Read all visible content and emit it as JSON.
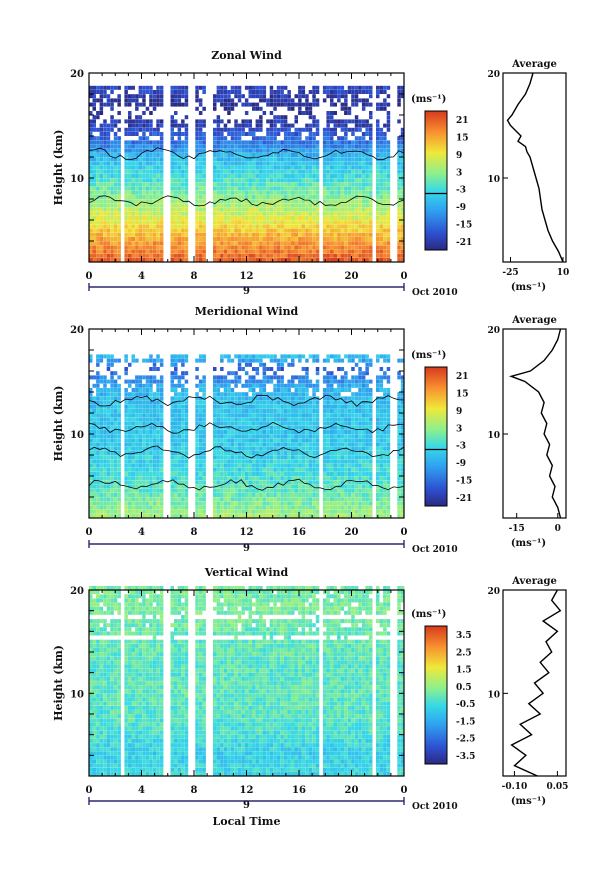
{
  "figure": {
    "bg": "#ffffff"
  },
  "chart_data": [
    {
      "type": "heatmap",
      "title": "Zonal Wind",
      "xlabel": "",
      "ylabel": "Height (km)",
      "x_ticks": [
        "0",
        "4",
        "8",
        "12",
        "16",
        "20",
        "0"
      ],
      "x_day_label": "9",
      "date_label": "Oct 2010",
      "y_ticks": [
        "20",
        "10"
      ],
      "ylim": [
        2,
        20
      ],
      "xlim": [
        0,
        24
      ],
      "colorbar": {
        "unit": "(ms⁻¹)",
        "ticks": [
          "21",
          "15",
          "9",
          "3",
          "-3",
          "-9",
          "-15",
          "-21"
        ],
        "range": [
          -24,
          24
        ]
      },
      "data_gaps_hours": [
        2.4,
        5.8,
        7.7,
        9.0,
        17.5,
        21.6,
        23.0
      ],
      "profile_by_height": {
        "heights_km": [
          2,
          4,
          6,
          8,
          10,
          12,
          13,
          14,
          15,
          16,
          17,
          18
        ],
        "values": [
          21,
          15,
          8,
          2,
          -3,
          -8,
          -14,
          -17,
          -21,
          -22,
          -22,
          -20
        ]
      },
      "average": {
        "title": "Average",
        "xlabel": "(ms⁻¹)",
        "x_ticks": [
          "-25",
          "10"
        ],
        "xlim": [
          -30,
          12
        ],
        "y_ticks": [
          "20",
          "10"
        ],
        "heights_km": [
          2,
          3,
          4,
          5,
          6,
          7,
          8,
          9,
          10,
          11,
          12,
          12.5,
          13,
          13.5,
          14,
          15,
          15.5,
          16,
          17,
          18,
          19,
          20
        ],
        "values": [
          10,
          7,
          3,
          0,
          -2,
          -4,
          -5,
          -6,
          -8,
          -10,
          -12,
          -14,
          -15,
          -20,
          -18,
          -25,
          -27,
          -24,
          -20,
          -15,
          -12,
          -10
        ]
      }
    },
    {
      "type": "heatmap",
      "title": "Meridional Wind",
      "xlabel": "",
      "ylabel": "Height (km)",
      "x_ticks": [
        "0",
        "4",
        "8",
        "12",
        "16",
        "20",
        "0"
      ],
      "x_day_label": "9",
      "date_label": "Oct 2010",
      "y_ticks": [
        "20",
        "10"
      ],
      "ylim": [
        2,
        20
      ],
      "xlim": [
        0,
        24
      ],
      "colorbar": {
        "unit": "(ms⁻¹)",
        "ticks": [
          "21",
          "15",
          "9",
          "3",
          "-3",
          "-9",
          "-15",
          "-21"
        ],
        "range": [
          -24,
          24
        ]
      },
      "data_gaps_hours": [
        2.4,
        5.8,
        7.7,
        9.0,
        17.5,
        21.6,
        23.0
      ],
      "profile_by_height": {
        "heights_km": [
          2,
          4,
          6,
          8,
          10,
          12,
          14,
          15,
          16,
          17,
          18
        ],
        "values": [
          4,
          0,
          -3,
          -5,
          -6,
          -6,
          -8,
          -12,
          -17,
          -8,
          -2
        ]
      },
      "average": {
        "title": "Average",
        "xlabel": "(ms⁻¹)",
        "x_ticks": [
          "-15",
          "0"
        ],
        "xlim": [
          -20,
          3
        ],
        "y_ticks": [
          "20",
          "10"
        ],
        "heights_km": [
          2,
          3,
          4,
          5,
          6,
          7,
          8,
          9,
          10,
          11,
          12,
          13,
          14,
          15,
          15.5,
          16,
          17,
          18,
          19,
          20
        ],
        "values": [
          1,
          0,
          -2,
          -1,
          -3,
          -2,
          -4,
          -3,
          -5,
          -4,
          -6,
          -5,
          -7,
          -12,
          -17,
          -10,
          -5,
          -2,
          0,
          1
        ]
      }
    },
    {
      "type": "heatmap",
      "title": "Vertical Wind",
      "xlabel": "Local Time",
      "ylabel": "Height (km)",
      "x_ticks": [
        "0",
        "4",
        "8",
        "12",
        "16",
        "20",
        "0"
      ],
      "x_day_label": "9",
      "date_label": "Oct 2010",
      "y_ticks": [
        "20",
        "10"
      ],
      "ylim": [
        2,
        20
      ],
      "xlim": [
        0,
        24
      ],
      "colorbar": {
        "unit": "(ms⁻¹)",
        "ticks": [
          "3.5",
          "2.5",
          "1.5",
          "0.5",
          "-0.5",
          "-1.5",
          "-2.5",
          "-3.5"
        ],
        "range": [
          -4,
          4
        ]
      },
      "data_gaps_hours": [
        2.4,
        5.8,
        7.7,
        9.0,
        17.5,
        21.6,
        23.0
      ],
      "profile_by_height": {
        "heights_km": [
          2,
          4,
          6,
          8,
          10,
          12,
          14,
          16,
          18,
          20
        ],
        "values": [
          -0.6,
          -0.8,
          -0.4,
          -0.2,
          -0.1,
          -0.2,
          -0.1,
          0.0,
          0.2,
          0.1
        ]
      },
      "average": {
        "title": "Average",
        "xlabel": "(ms⁻¹)",
        "x_ticks": [
          "-0.10",
          "0.05"
        ],
        "xlim": [
          -0.14,
          0.08
        ],
        "y_ticks": [
          "20",
          "10"
        ],
        "heights_km": [
          2,
          3,
          4,
          5,
          6,
          7,
          8,
          9,
          10,
          11,
          12,
          13,
          14,
          15,
          16,
          17,
          18,
          19,
          20
        ],
        "values": [
          -0.02,
          -0.1,
          -0.06,
          -0.11,
          -0.04,
          -0.08,
          -0.01,
          -0.05,
          0.0,
          -0.03,
          0.02,
          -0.01,
          0.03,
          0.01,
          0.05,
          0.0,
          0.06,
          0.03,
          0.05
        ]
      }
    }
  ]
}
